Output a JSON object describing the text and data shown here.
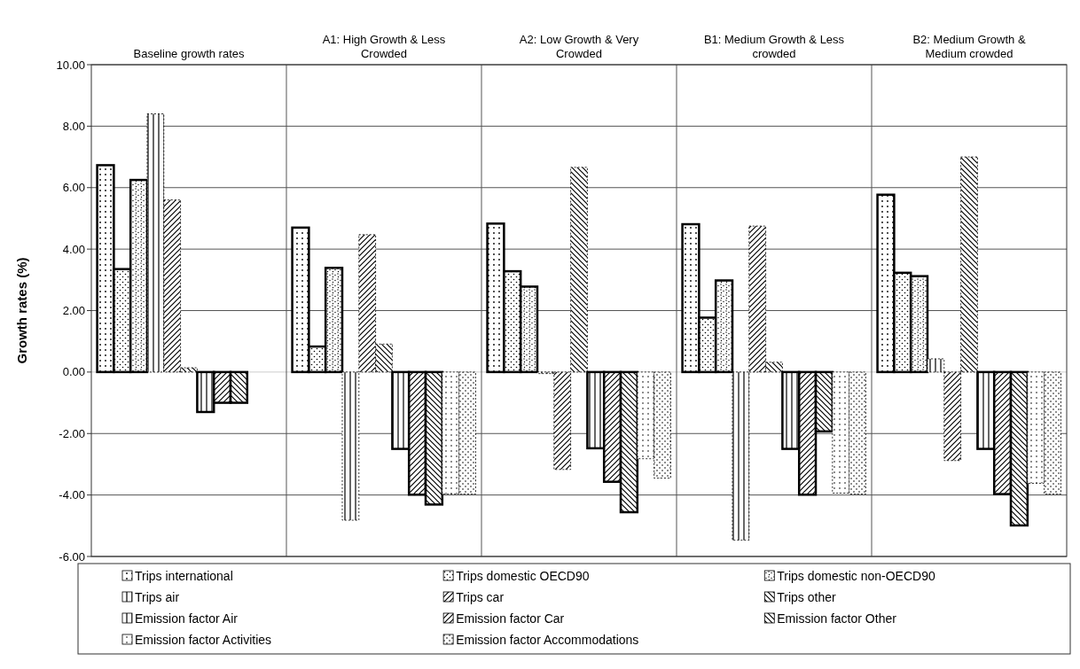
{
  "chart_data": {
    "type": "bar",
    "ylabel": "Growth rates (%)",
    "categories": [
      "Baseline growth rates",
      "A1: High Growth & Less Crowded",
      "A2: Low Growth & Very Crowded",
      "B1: Medium Growth & Less crowded",
      "B2: Medium Growth & Medium crowded"
    ],
    "series": [
      {
        "name": "Trips international",
        "color": "#000000",
        "values": [
          6.73,
          4.7,
          4.83,
          4.81,
          5.77
        ]
      },
      {
        "name": "Trips domestic OECD90",
        "color": "#000000",
        "values": [
          3.35,
          0.83,
          3.28,
          1.77,
          3.23
        ]
      },
      {
        "name": "Trips domestic non-OECD90",
        "color": "#000000",
        "values": [
          6.25,
          3.39,
          2.78,
          2.98,
          3.12
        ]
      },
      {
        "name": "Trips air",
        "color": "#000000",
        "values": [
          8.4,
          -4.82,
          -0.05,
          -5.47,
          0.43
        ]
      },
      {
        "name": "Trips car",
        "color": "#000000",
        "values": [
          5.6,
          4.47,
          -3.17,
          4.75,
          -2.88
        ]
      },
      {
        "name": "Trips other",
        "color": "#000000",
        "values": [
          0.14,
          0.91,
          6.66,
          0.32,
          7.0
        ]
      },
      {
        "name": "Emission factor Air",
        "color": "#000000",
        "values": [
          -1.3,
          -2.5,
          -2.48,
          -2.5,
          -2.5
        ]
      },
      {
        "name": "Emission factor Car",
        "color": "#000000",
        "values": [
          -1.0,
          -3.99,
          -3.57,
          -3.99,
          -3.97
        ]
      },
      {
        "name": "Emission factor Other",
        "color": "#000000",
        "values": [
          -1.0,
          -4.31,
          -4.56,
          -1.93,
          -4.99
        ]
      },
      {
        "name": "Emission factor Activities",
        "color": "#000000",
        "values": [
          null,
          -3.97,
          -2.82,
          -3.94,
          -3.62
        ]
      },
      {
        "name": "Emission factor Accommodations",
        "color": "#000000",
        "values": [
          null,
          -3.97,
          -3.45,
          -3.97,
          -3.97
        ]
      }
    ],
    "ylim": [
      -6,
      10
    ],
    "yticks": [
      {
        "value": -6,
        "label": "-6.00"
      },
      {
        "value": -4,
        "label": "-4.00"
      },
      {
        "value": -2,
        "label": "-2.00"
      },
      {
        "value": 0,
        "label": "0.00"
      },
      {
        "value": 2,
        "label": "2.00"
      },
      {
        "value": 4,
        "label": "4.00"
      },
      {
        "value": 6,
        "label": "6.00"
      },
      {
        "value": 8,
        "label": "8.00"
      },
      {
        "value": 10,
        "label": "10.00"
      }
    ],
    "grid": "y",
    "legend": "bottom"
  }
}
